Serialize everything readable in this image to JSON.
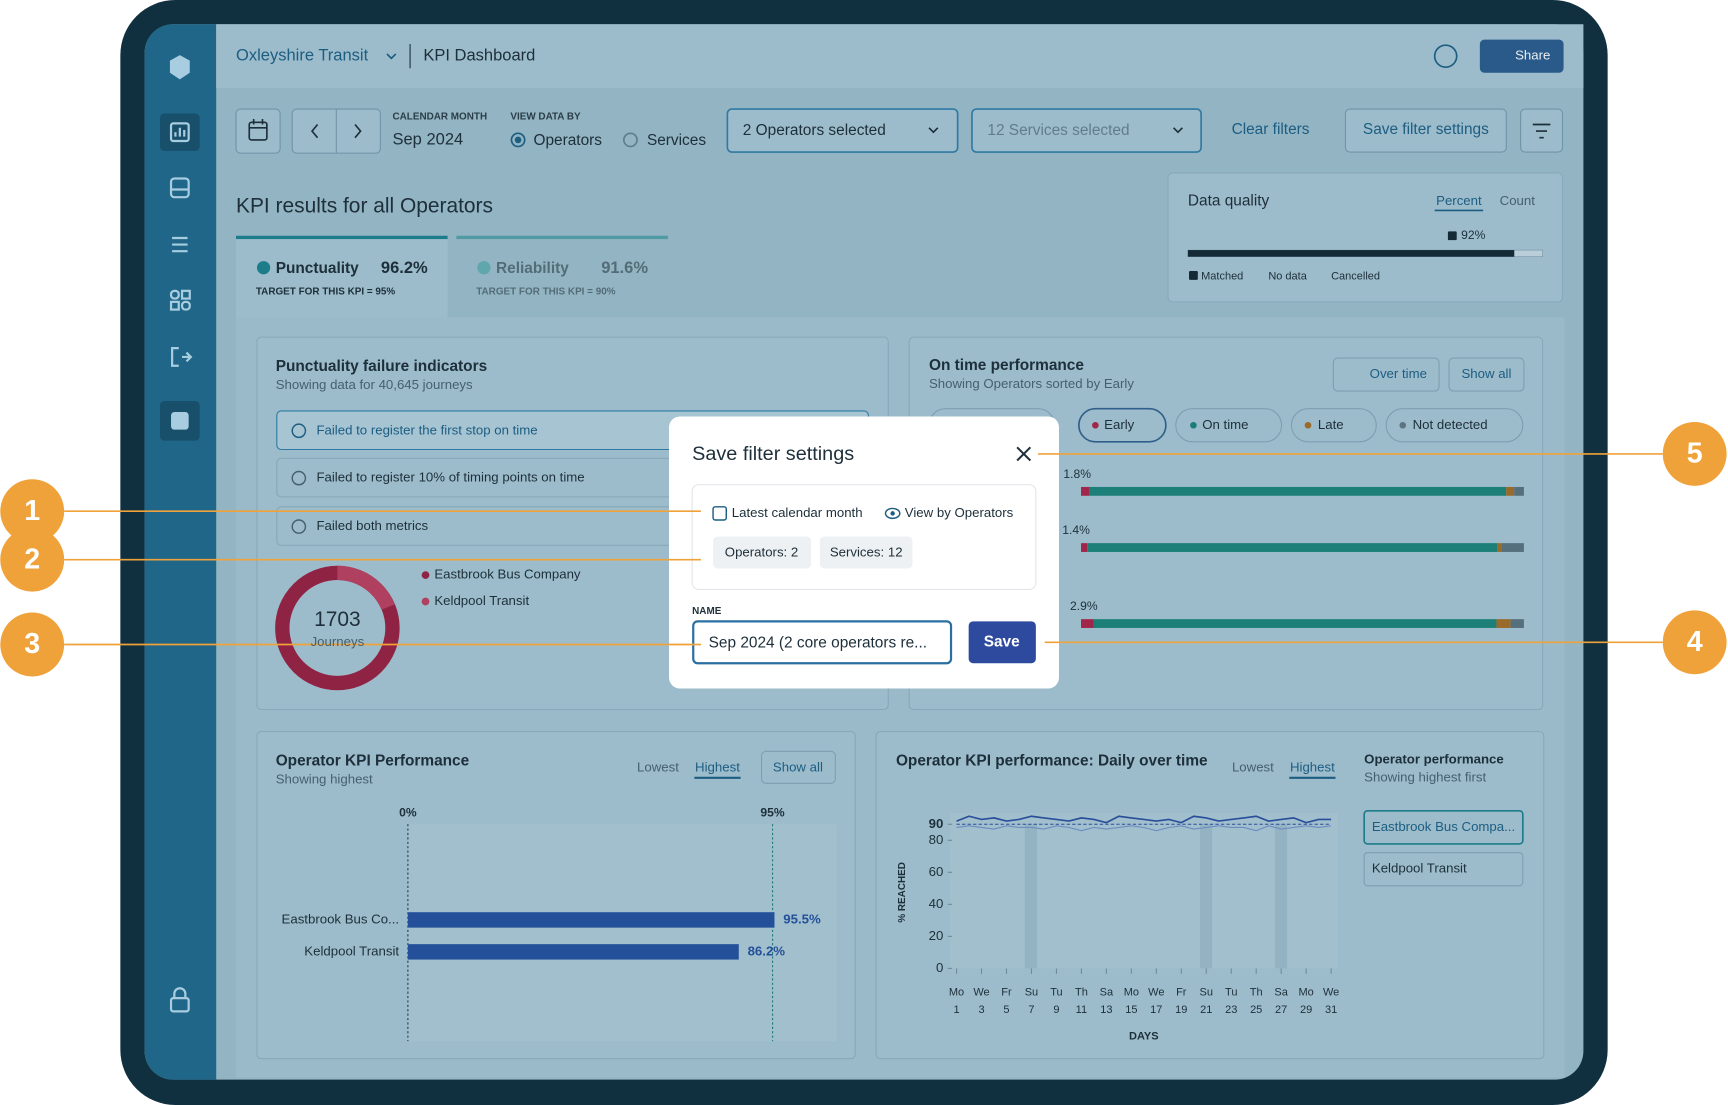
{
  "header": {
    "brand": "Oxleyshire Transit",
    "page": "KPI Dashboard",
    "share": "Share"
  },
  "filters": {
    "calendar_label": "CALENDAR MONTH",
    "month": "Sep 2024",
    "view_label": "VIEW DATA BY",
    "view_options": [
      "Operators",
      "Services"
    ],
    "operators": "2 Operators selected",
    "services": "12 Services selected",
    "clear": "Clear filters",
    "save": "Save filter settings"
  },
  "kpi": {
    "title": "KPI results for all Operators",
    "tabs": [
      {
        "name": "Punctuality",
        "value": "96.2%",
        "target": "TARGET FOR THIS KPI = 95%"
      },
      {
        "name": "Reliability",
        "value": "91.6%",
        "target": "TARGET FOR THIS KPI = 90%"
      }
    ]
  },
  "data_quality": {
    "title": "Data quality",
    "toggles": [
      "Percent",
      "Count"
    ],
    "matched": 92,
    "matched_label": "92%",
    "legend": [
      "Matched",
      "No data",
      "Cancelled"
    ]
  },
  "failures": {
    "title": "Punctuality failure indicators",
    "subtitle": "Showing data for 40,645 journeys",
    "items": [
      "Failed to register the first stop on time",
      "Failed to register 10% of timing points on time",
      "Failed both metrics"
    ],
    "total": "1703",
    "total_label": "Journeys",
    "legend": [
      "Eastbrook Bus Company",
      "Keldpool Transit"
    ]
  },
  "on_time": {
    "title": "On time performance",
    "subtitle": "Showing Operators sorted by Early",
    "buttons": [
      "Over time",
      "Show all"
    ],
    "filters": [
      "Early",
      "On time",
      "Late",
      "Not detected"
    ],
    "rows": [
      {
        "early": 1.8,
        "early_label": "1.8%",
        "on_time": 94.2,
        "late": 1.8,
        "not_detected": 2.2
      },
      {
        "early": 1.4,
        "early_label": "1.4%",
        "on_time": 92.6,
        "late": 0.9,
        "not_detected": 5.1
      },
      {
        "early": 2.9,
        "early_label": "2.9%",
        "on_time": 90.9,
        "late": 3.2,
        "not_detected": 3.0
      }
    ]
  },
  "modal": {
    "title": "Save filter settings",
    "chips": [
      "Latest calendar month",
      "View by Operators"
    ],
    "tags": [
      "Operators: 2",
      "Services: 12"
    ],
    "name_label": "NAME",
    "name_value": "Sep 2024 (2 core operators re...",
    "save": "Save"
  },
  "callouts": [
    "1",
    "2",
    "3",
    "4",
    "5"
  ],
  "operator_kpi": {
    "title": "Operator KPI Performance",
    "subtitle": "Showing highest",
    "toggles": [
      "Lowest",
      "Highest"
    ],
    "show_all": "Show all",
    "xlim": [
      0,
      95
    ],
    "xticks": [
      {
        "value": 0,
        "label": "0%"
      },
      {
        "value": 95,
        "label": "95%"
      }
    ],
    "categories": [
      "Eastbrook Bus Co...",
      "Keldpool Transit"
    ],
    "values": [
      95.5,
      86.2
    ],
    "value_labels": [
      "95.5%",
      "86.2%"
    ],
    "color": "#24509a"
  },
  "daily": {
    "title": "Operator KPI performance: Daily over time",
    "toggles": [
      "Lowest",
      "Highest"
    ],
    "y_label": "% REACHED",
    "x_label": "DAYS",
    "ylim": [
      0,
      97
    ],
    "yticks": [
      0,
      20,
      40,
      60,
      80,
      90
    ],
    "xlim": [
      1,
      31
    ],
    "xticks": [
      1,
      3,
      5,
      7,
      9,
      11,
      13,
      15,
      17,
      19,
      21,
      23,
      25,
      27,
      29,
      31
    ],
    "weekdays": [
      "Mo",
      "We",
      "Fr",
      "Su",
      "Tu",
      "Th",
      "Sa",
      "Mo",
      "We",
      "Fr",
      "Su",
      "Tu",
      "Th",
      "Sa",
      "Mo",
      "We"
    ],
    "target": 90,
    "x": [
      1,
      2,
      3,
      4,
      5,
      6,
      7,
      8,
      9,
      10,
      11,
      12,
      13,
      14,
      15,
      16,
      17,
      18,
      19,
      20,
      21,
      22,
      23,
      24,
      25,
      26,
      27,
      28,
      29,
      30,
      31
    ],
    "series": [
      {
        "color": "#2a4f9a",
        "values": [
          92,
          95,
          93,
          94,
          92,
          93,
          95,
          94,
          93,
          92,
          94,
          93,
          91,
          95,
          94,
          93,
          92,
          93,
          91,
          95,
          94,
          92,
          93,
          94,
          95,
          92,
          93,
          94,
          91,
          93,
          93
        ]
      },
      {
        "color": "#6d8cc2",
        "values": [
          88,
          89,
          88,
          87,
          89,
          88,
          88,
          87,
          89,
          88,
          86,
          88,
          87,
          88,
          89,
          88,
          86,
          88,
          89,
          87,
          88,
          89,
          88,
          88,
          86,
          89,
          87,
          88,
          89,
          88,
          89
        ]
      }
    ]
  },
  "operator_list": {
    "title": "Operator performance",
    "subtitle": "Showing highest first",
    "items": [
      "Eastbrook Bus Compa...",
      "Keldpool Transit"
    ]
  }
}
